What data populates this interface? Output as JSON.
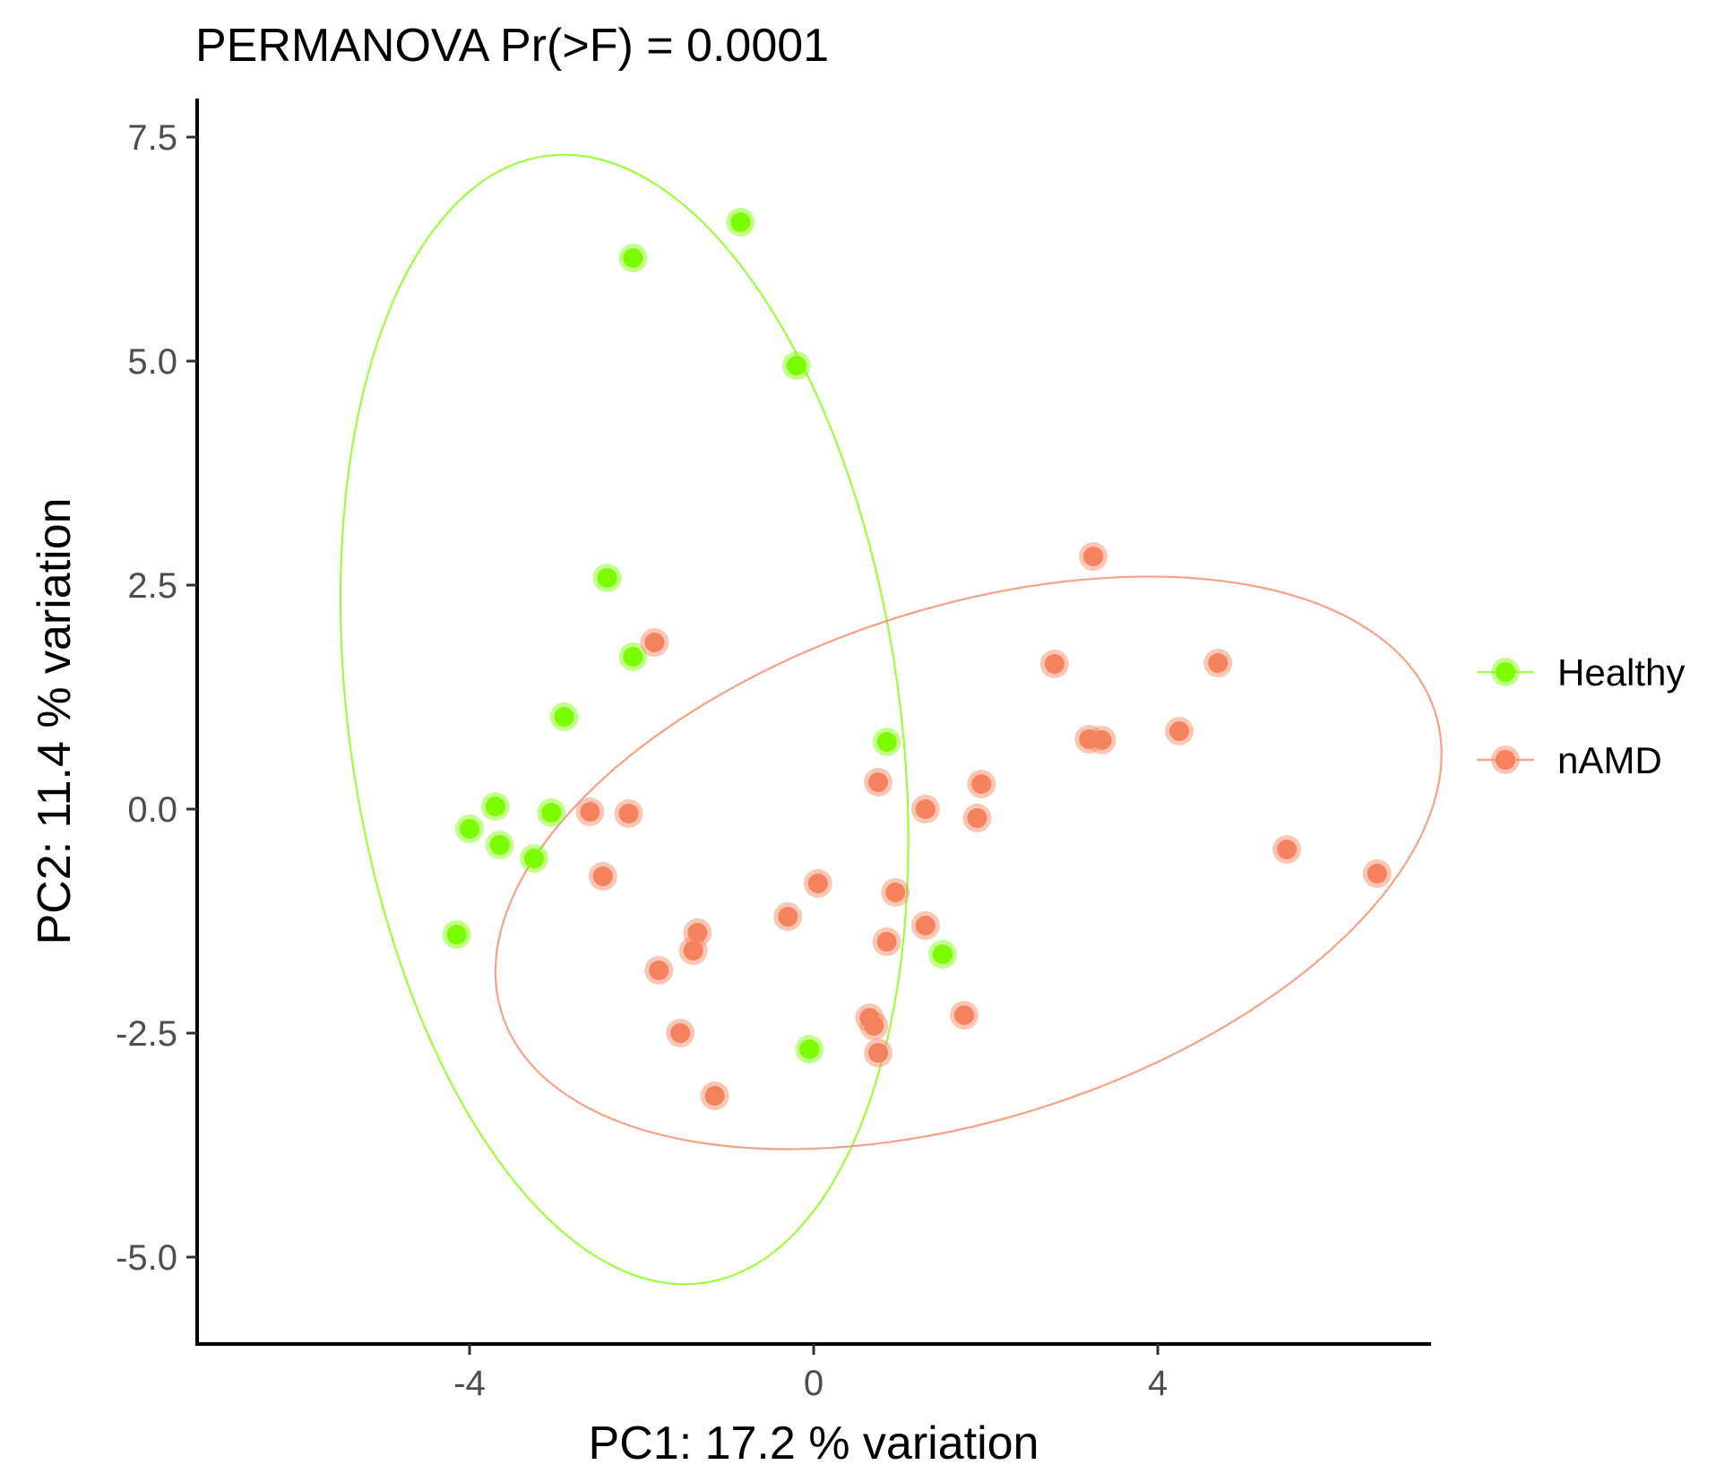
{
  "chart_data": {
    "type": "scatter",
    "title": "PERMANOVA Pr(>F) = 0.0001",
    "xlabel": "PC1:  17.2 % variation",
    "ylabel": "PC2:  11.4 % variation",
    "xlim": [
      -7.2,
      7.2
    ],
    "ylim": [
      -6.0,
      8.0
    ],
    "xticks": [
      -4,
      0,
      4
    ],
    "xtick_labels": [
      "-4",
      "0",
      "4"
    ],
    "yticks": [
      -5.0,
      -2.5,
      0.0,
      2.5,
      5.0,
      7.5
    ],
    "ytick_labels": [
      "-5.0",
      "-2.5",
      "0.0",
      "2.5",
      "5.0",
      "7.5"
    ],
    "grid": false,
    "legend_position": "right",
    "series": [
      {
        "name": "Healthy",
        "color": "#7cfc00",
        "ellipse": {
          "cx": -2.2,
          "cy": 1.0,
          "rx": 3.2,
          "ry": 6.35,
          "angle_deg": 8
        },
        "points": [
          {
            "x": -0.85,
            "y": 6.55
          },
          {
            "x": -2.1,
            "y": 6.15
          },
          {
            "x": -0.2,
            "y": 4.95
          },
          {
            "x": -2.4,
            "y": 2.58
          },
          {
            "x": -2.1,
            "y": 1.7
          },
          {
            "x": -2.9,
            "y": 1.03
          },
          {
            "x": -3.7,
            "y": 0.03
          },
          {
            "x": -3.05,
            "y": -0.04
          },
          {
            "x": -4.0,
            "y": -0.22
          },
          {
            "x": -3.65,
            "y": -0.4
          },
          {
            "x": -3.25,
            "y": -0.55
          },
          {
            "x": -4.15,
            "y": -1.4
          },
          {
            "x": 0.85,
            "y": 0.75
          },
          {
            "x": 1.5,
            "y": -1.62
          },
          {
            "x": -0.05,
            "y": -2.68
          }
        ]
      },
      {
        "name": "nAMD",
        "color": "#f4825f",
        "ellipse": {
          "cx": 1.8,
          "cy": -0.6,
          "rx": 5.7,
          "ry": 2.85,
          "angle_deg": 18
        },
        "points": [
          {
            "x": 3.25,
            "y": 2.82
          },
          {
            "x": -1.85,
            "y": 1.86
          },
          {
            "x": 2.8,
            "y": 1.62
          },
          {
            "x": 4.7,
            "y": 1.63
          },
          {
            "x": 4.25,
            "y": 0.87
          },
          {
            "x": 3.2,
            "y": 0.78
          },
          {
            "x": 3.35,
            "y": 0.77
          },
          {
            "x": 0.75,
            "y": 0.3
          },
          {
            "x": 1.95,
            "y": 0.28
          },
          {
            "x": -2.6,
            "y": -0.03
          },
          {
            "x": -2.15,
            "y": -0.05
          },
          {
            "x": 1.3,
            "y": 0.0
          },
          {
            "x": 1.9,
            "y": -0.1
          },
          {
            "x": 5.5,
            "y": -0.45
          },
          {
            "x": 6.55,
            "y": -0.72
          },
          {
            "x": -2.45,
            "y": -0.75
          },
          {
            "x": 0.05,
            "y": -0.83
          },
          {
            "x": 0.95,
            "y": -0.93
          },
          {
            "x": -0.3,
            "y": -1.2
          },
          {
            "x": 1.3,
            "y": -1.3
          },
          {
            "x": -1.35,
            "y": -1.38
          },
          {
            "x": 0.85,
            "y": -1.48
          },
          {
            "x": -1.4,
            "y": -1.58
          },
          {
            "x": -1.8,
            "y": -1.8
          },
          {
            "x": 1.75,
            "y": -2.3
          },
          {
            "x": 0.65,
            "y": -2.33
          },
          {
            "x": 0.7,
            "y": -2.42
          },
          {
            "x": -1.55,
            "y": -2.5
          },
          {
            "x": 0.75,
            "y": -2.72
          },
          {
            "x": -1.15,
            "y": -3.2
          }
        ]
      }
    ]
  }
}
